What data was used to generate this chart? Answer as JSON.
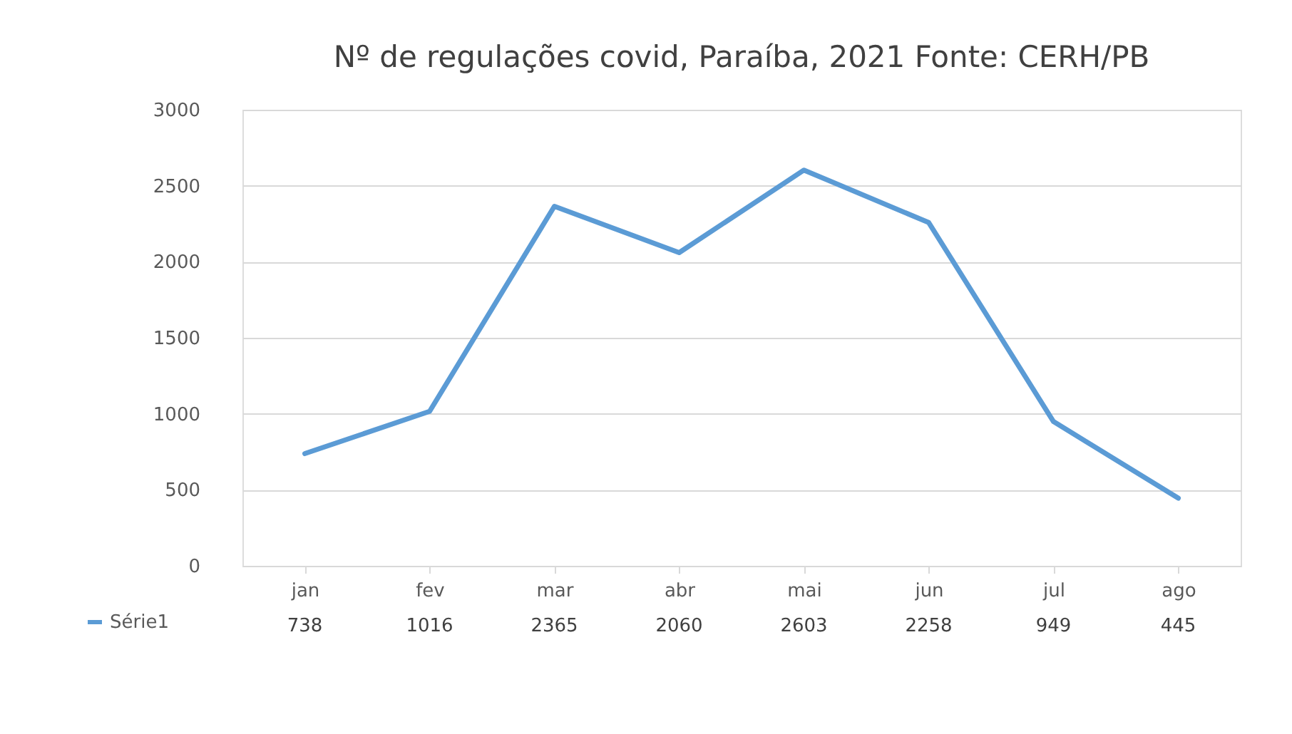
{
  "chart_data": {
    "type": "line",
    "title": "Nº de regulações covid, Paraíba, 2021 Fonte: CERH/PB",
    "categories": [
      "jan",
      "fev",
      "mar",
      "abr",
      "mai",
      "jun",
      "jul",
      "ago"
    ],
    "series": [
      {
        "name": "Série1",
        "color": "#5b9bd5",
        "values": [
          738,
          1016,
          2365,
          2060,
          2603,
          2258,
          949,
          445
        ]
      }
    ],
    "ylim": [
      0,
      3000
    ],
    "yticks": [
      0,
      500,
      1000,
      1500,
      2000,
      2500,
      3000
    ],
    "grid": "y",
    "data_labels": true,
    "legend": "bottom left",
    "marker": "none",
    "line_style": "solid"
  }
}
